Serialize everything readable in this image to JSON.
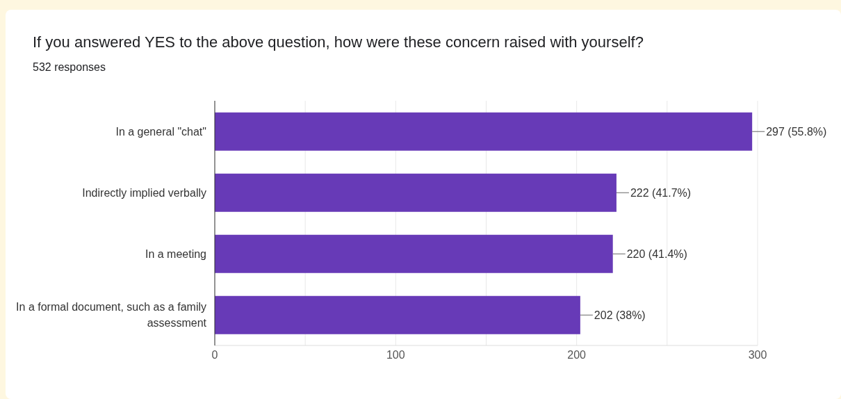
{
  "chart_data": {
    "type": "bar",
    "orientation": "horizontal",
    "title": "If you answered YES to the above question, how were these concern raised with yourself?",
    "subtitle": "532 responses",
    "categories": [
      "In a general \"chat\"",
      "Indirectly implied verbally",
      "In a meeting",
      "In a formal document, such as a family assessment"
    ],
    "values": [
      297,
      222,
      220,
      202
    ],
    "value_labels": [
      "297 (55.8%)",
      "222 (41.7%)",
      "220 (41.4%)",
      "202 (38%)"
    ],
    "color": "#673ab7",
    "xlim": [
      0,
      300
    ],
    "xticks": [
      0,
      {
        "value": 50,
        "label": null
      },
      100,
      {
        "value": 150,
        "label": null
      },
      200,
      {
        "value": 250,
        "label": null
      },
      300
    ],
    "grid": "x"
  }
}
